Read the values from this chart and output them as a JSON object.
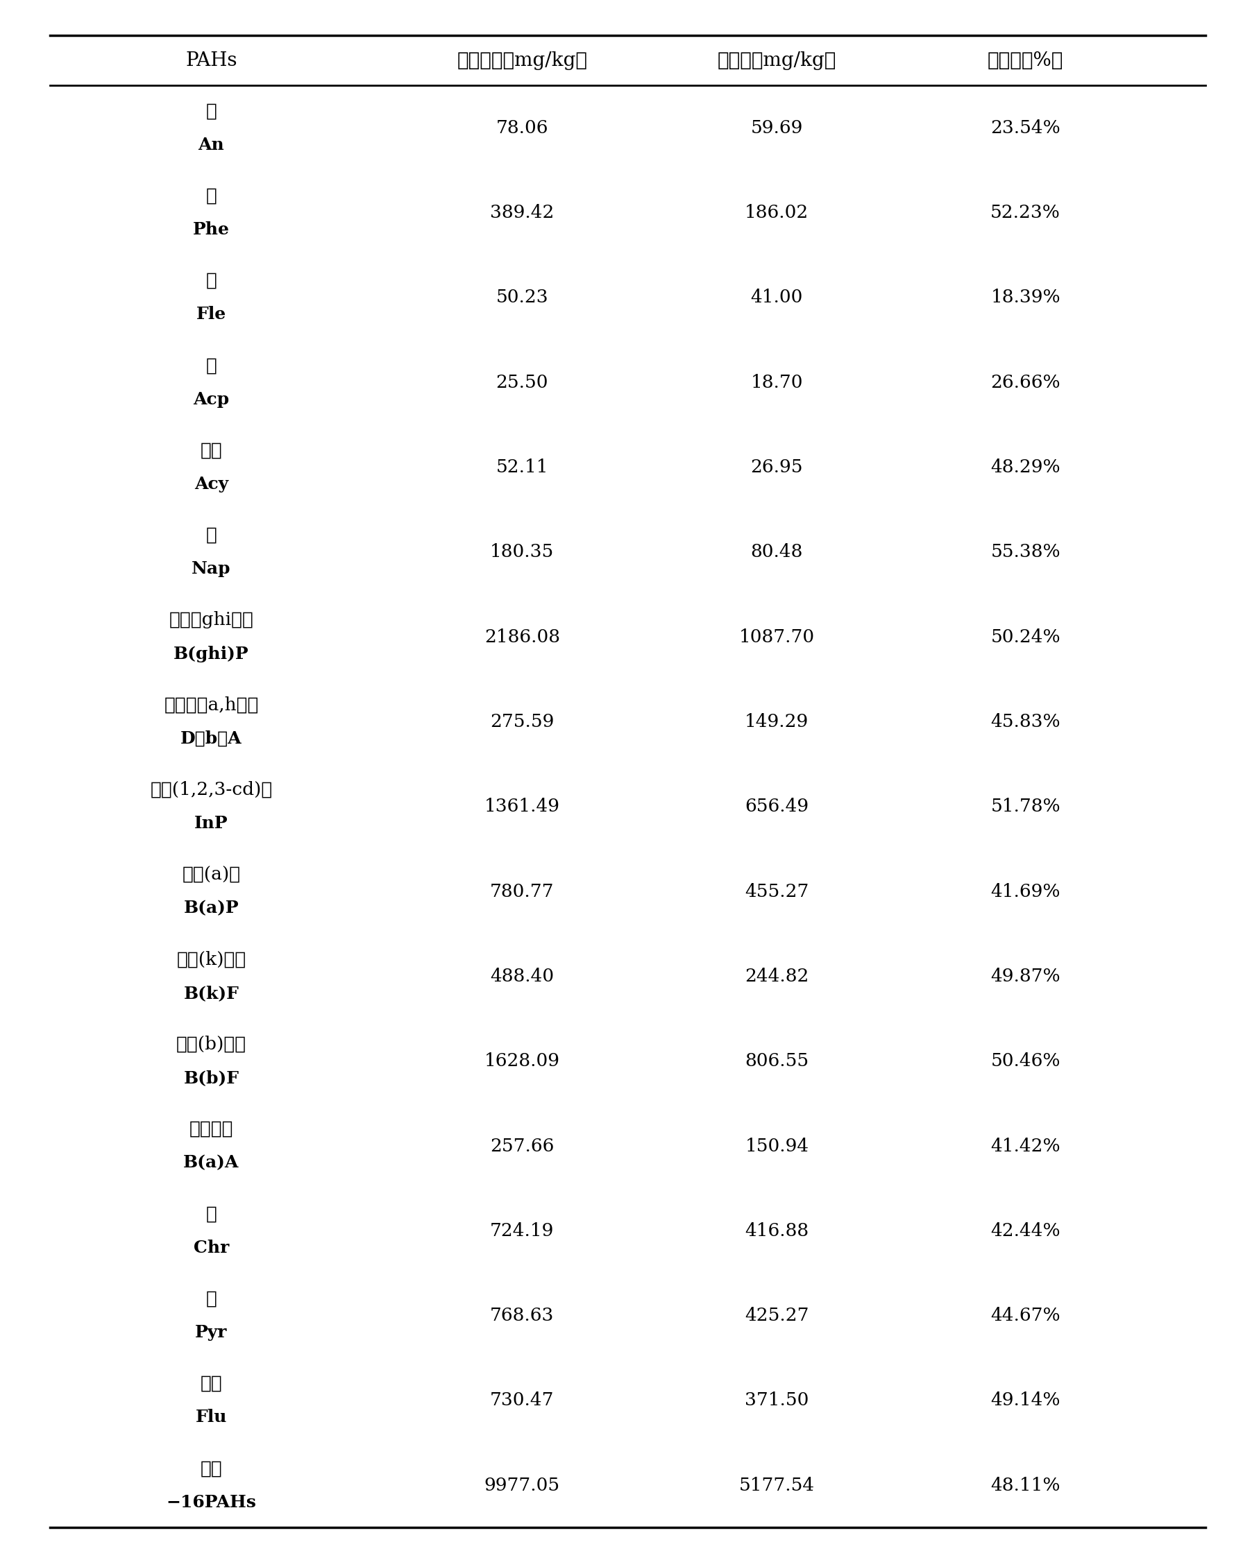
{
  "header": [
    "PAHs",
    "初始含量（mg/kg）",
    "终含量（mg/kg）",
    "去除率（%）"
  ],
  "rows": [
    {
      "name_cn": "荠",
      "name_en": "An",
      "initial": "78.06",
      "final": "59.69",
      "removal": "23.54%"
    },
    {
      "name_cn": "菲",
      "name_en": "Phe",
      "initial": "389.42",
      "final": "186.02",
      "removal": "52.23%"
    },
    {
      "name_cn": "芔",
      "name_en": "Fle",
      "initial": "50.23",
      "final": "41.00",
      "removal": "18.39%"
    },
    {
      "name_cn": "荚",
      "name_en": "Acp",
      "initial": "25.50",
      "final": "18.70",
      "removal": "26.66%"
    },
    {
      "name_cn": "荚烯",
      "name_en": "Acy",
      "initial": "52.11",
      "final": "26.95",
      "removal": "48.29%"
    },
    {
      "name_cn": "萸",
      "name_en": "Nap",
      "initial": "180.35",
      "final": "80.48",
      "removal": "55.38%"
    },
    {
      "name_cn": "苯并（ghi）芹",
      "name_en": "B(ghi)P",
      "initial": "2186.08",
      "final": "1087.70",
      "removal": "50.24%"
    },
    {
      "name_cn": "二苯并（a,h）荠",
      "name_en": "D（b）A",
      "initial": "275.59",
      "final": "149.29",
      "removal": "45.83%"
    },
    {
      "name_cn": "茹并(1,2,3-cd)芹",
      "name_en": "InP",
      "initial": "1361.49",
      "final": "656.49",
      "removal": "51.78%"
    },
    {
      "name_cn": "苯并(a)芹",
      "name_en": "B(a)P",
      "initial": "780.77",
      "final": "455.27",
      "removal": "41.69%"
    },
    {
      "name_cn": "苯并(k)荆荠",
      "name_en": "B(k)F",
      "initial": "488.40",
      "final": "244.82",
      "removal": "49.87%"
    },
    {
      "name_cn": "苯并(b)荆荠",
      "name_en": "B(b)F",
      "initial": "1628.09",
      "final": "806.55",
      "removal": "50.46%"
    },
    {
      "name_cn": "苯并荆荠",
      "name_en": "B(a)A",
      "initial": "257.66",
      "final": "150.94",
      "removal": "41.42%"
    },
    {
      "name_cn": "屈",
      "name_en": "Chr",
      "initial": "724.19",
      "final": "416.88",
      "removal": "42.44%"
    },
    {
      "name_cn": "芹",
      "name_en": "Pyr",
      "initial": "768.63",
      "final": "425.27",
      "removal": "44.67%"
    },
    {
      "name_cn": "荆荠",
      "name_en": "Flu",
      "initial": "730.47",
      "final": "371.50",
      "removal": "49.14%"
    },
    {
      "name_cn": "总量",
      "name_en": "−16PAHs",
      "initial": "9977.05",
      "final": "5177.54",
      "removal": "48.11%"
    }
  ],
  "background_color": "#ffffff",
  "text_color": "#000000",
  "fig_width": 17.91,
  "fig_height": 22.36
}
